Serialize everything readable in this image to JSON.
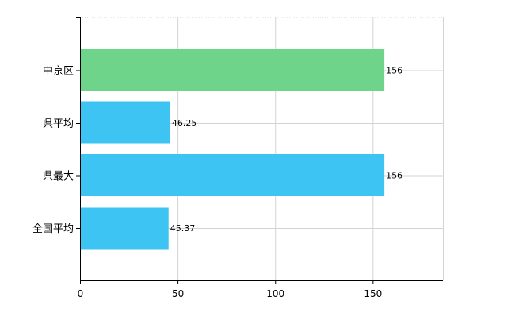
{
  "chart_data": {
    "type": "bar",
    "orientation": "horizontal",
    "title": "",
    "xlabel": "",
    "ylabel": "",
    "categories": [
      "中京区",
      "県平均",
      "県最大",
      "全国平均"
    ],
    "values": [
      156,
      46.25,
      156,
      45.37
    ],
    "value_labels": [
      "156",
      "46.25",
      "156",
      "45.37"
    ],
    "bar_colors": [
      "#6dd48a",
      "#3ec4f3",
      "#3ec4f3",
      "#3ec4f3"
    ],
    "xlim": [
      0,
      186
    ],
    "x_ticks": [
      0,
      50,
      100,
      150
    ],
    "x_tick_labels": [
      "0",
      "50",
      "100",
      "150"
    ],
    "grid": true,
    "legend": "none"
  }
}
